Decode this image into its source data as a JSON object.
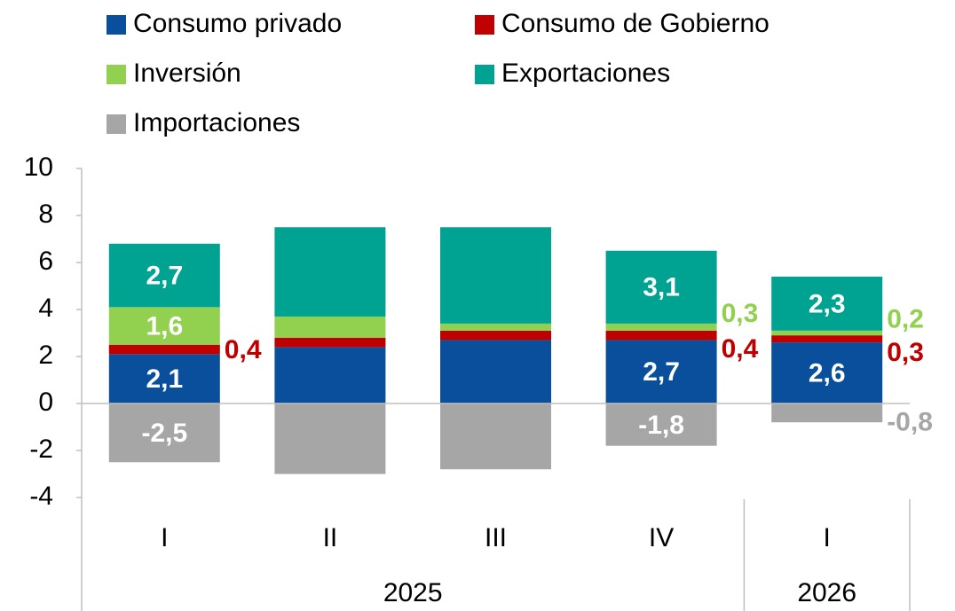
{
  "chart_data": {
    "type": "stacked_bar",
    "categories": [
      "I",
      "II",
      "III",
      "IV",
      "I"
    ],
    "years": [
      "2025",
      "2025",
      "2025",
      "2025",
      "2026"
    ],
    "series": [
      {
        "name": "Consumo privado",
        "color": "#0a4f9c",
        "values": [
          2.1,
          2.4,
          2.7,
          2.7,
          2.6
        ],
        "value_labels": [
          "2,1",
          null,
          null,
          "2,7",
          "2,6"
        ]
      },
      {
        "name": "Consumo de Gobierno",
        "color": "#c00000",
        "values": [
          0.4,
          0.4,
          0.4,
          0.4,
          0.3
        ],
        "value_labels": [
          "0,4",
          null,
          null,
          "0,4",
          "0,3"
        ]
      },
      {
        "name": "Inversión",
        "color": "#92d050",
        "values": [
          1.6,
          0.9,
          0.3,
          0.3,
          0.2
        ],
        "value_labels": [
          "1,6",
          null,
          null,
          "0,3",
          "0,2"
        ]
      },
      {
        "name": "Exportaciones",
        "color": "#00a391",
        "values": [
          2.7,
          3.8,
          4.1,
          3.1,
          2.3
        ],
        "value_labels": [
          "2,7",
          null,
          null,
          "3,1",
          "2,3"
        ]
      },
      {
        "name": "Importaciones",
        "color": "#a6a6a6",
        "values": [
          -2.5,
          -3.0,
          -2.8,
          -1.8,
          -0.8
        ],
        "value_labels": [
          "-2,5",
          null,
          null,
          "-1,8",
          "-0,8"
        ]
      }
    ],
    "ylim": [
      -4,
      10
    ],
    "yticks": [
      -4,
      -2,
      0,
      2,
      4,
      6,
      8,
      10
    ]
  }
}
